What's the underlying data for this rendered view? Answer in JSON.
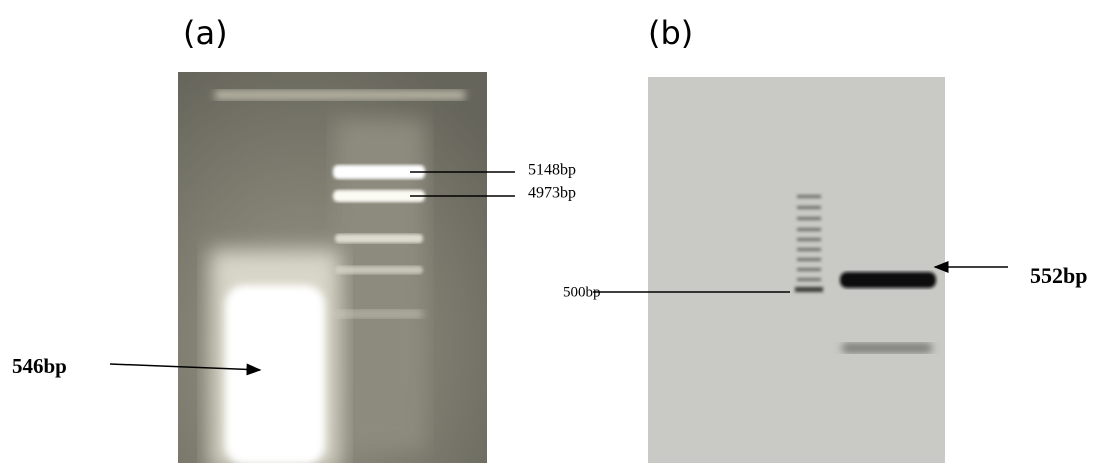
{
  "panels": [
    {
      "label": "(a)",
      "annotations": [
        "5148bp",
        "4973bp",
        "546bp"
      ]
    },
    {
      "label": "(b)",
      "annotations": [
        "500bp",
        "552bp"
      ]
    }
  ]
}
